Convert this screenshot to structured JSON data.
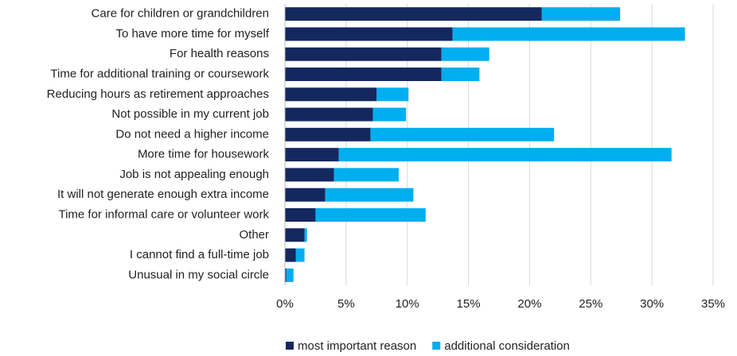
{
  "chart_data": {
    "type": "stacked-barh",
    "categories": [
      "Care for children or grandchildren",
      "To have more time for myself",
      "For health reasons",
      "Time for additional training or coursework",
      "Reducing hours as retirement approaches",
      "Not possible in my current job",
      "Do not need a higher income",
      "More time for housework",
      "Job is not appealing enough",
      "It will not generate enough extra income",
      "Time for informal care or volunteer work",
      "Other",
      "I cannot find a full-time job",
      "Unusual in my social circle"
    ],
    "series": [
      {
        "name": "most important reason",
        "color": "#14285f",
        "values": [
          21.0,
          13.7,
          12.8,
          12.8,
          7.5,
          7.2,
          7.0,
          4.4,
          4.0,
          3.3,
          2.5,
          1.6,
          0.9,
          0.1
        ]
      },
      {
        "name": "additional consideration",
        "color": "#00aeef",
        "values": [
          6.4,
          19.0,
          3.9,
          3.1,
          2.6,
          2.7,
          15.0,
          27.2,
          5.3,
          7.2,
          9.0,
          0.2,
          0.7,
          0.6
        ]
      }
    ],
    "xlim": [
      0,
      35
    ],
    "xticks": [
      {
        "value": 0,
        "label": "0%"
      },
      {
        "value": 5,
        "label": "5%"
      },
      {
        "value": 10,
        "label": "10%"
      },
      {
        "value": 15,
        "label": "15%"
      },
      {
        "value": 20,
        "label": "20%"
      },
      {
        "value": 25,
        "label": "25%"
      },
      {
        "value": 30,
        "label": "30%"
      },
      {
        "value": 35,
        "label": "35%"
      }
    ],
    "grid": true,
    "legend": "bottom"
  }
}
